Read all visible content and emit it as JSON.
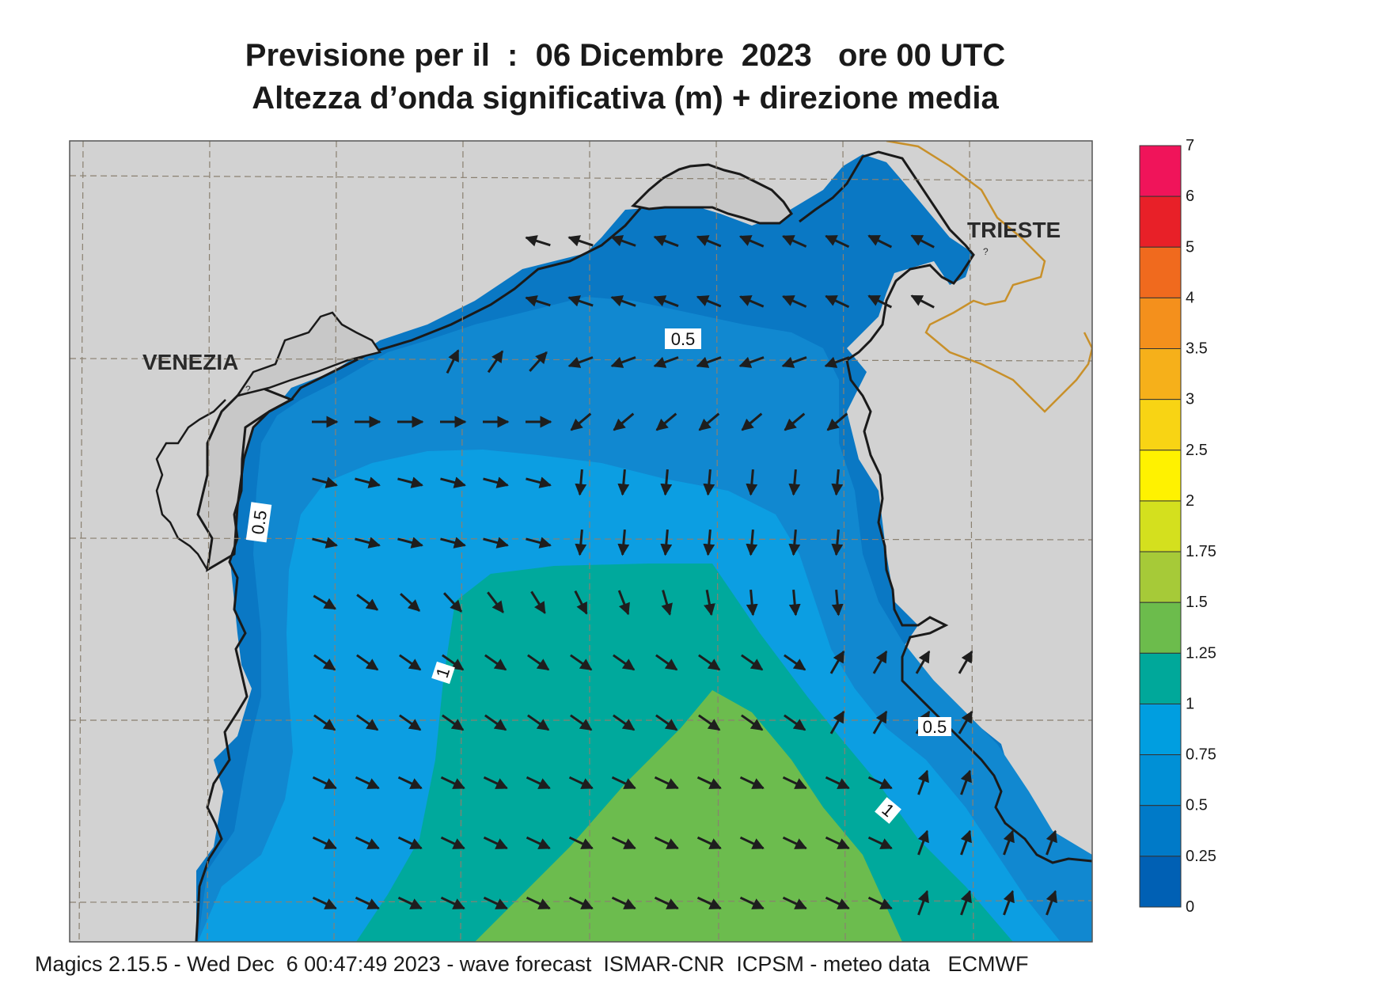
{
  "header": {
    "line1": "Previsione per il  :  06 Dicembre  2023   ore 00 UTC",
    "line2": "Altezza d’onda significativa (m) + direzione media"
  },
  "places": {
    "venezia": "VENEZIA",
    "trieste": "TRIESTE"
  },
  "contour_labels": [
    "0.5",
    "0.5",
    "1",
    "0.5",
    "1"
  ],
  "colorbar": {
    "ticks": [
      "7",
      "6",
      "5",
      "4",
      "3.5",
      "3",
      "2.5",
      "2",
      "1.75",
      "1.5",
      "1.25",
      "1",
      "0.75",
      "0.5",
      "0.25",
      "0"
    ],
    "colors": [
      "#f0145a",
      "#e82028",
      "#f06a1e",
      "#f4901c",
      "#f6b01a",
      "#f8d414",
      "#fff200",
      "#d4e01e",
      "#a6ca38",
      "#6cbc4c",
      "#00a89a",
      "#009ee0",
      "#0090d6",
      "#007ac8",
      "#0060b4"
    ]
  },
  "legend_colors": {
    "land": "#d2d2d2",
    "sea_025_05": "#0a78c4",
    "sea_05_075": "#1188d0",
    "sea_075_1": "#0c9ee2",
    "sea_1_125": "#00a99c",
    "sea_125_15": "#6cbc4e",
    "border": "#c8902a"
  },
  "footer": "Magics 2.15.5 - Wed Dec  6 00:47:49 2023 - wave forecast  ISMAR-CNR  ICPSM - meteo data   ECMWF"
}
